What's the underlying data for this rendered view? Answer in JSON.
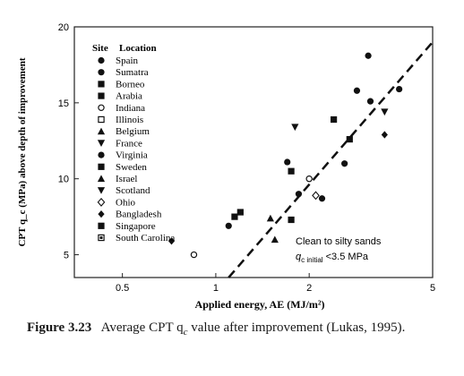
{
  "chart_data": {
    "type": "scatter",
    "x_scale": "log",
    "xlim": [
      0.35,
      5
    ],
    "ylim": [
      3.5,
      20
    ],
    "x_ticks": [
      0.5,
      1,
      2,
      5
    ],
    "x_tick_labels": [
      "0.5",
      "1",
      "2",
      "5"
    ],
    "y_ticks": [
      5,
      10,
      15,
      20
    ],
    "y_tick_labels": [
      "5",
      "10",
      "15",
      "20"
    ],
    "xlabel": "Applied energy, AE (MJ/m²)",
    "ylabel": "CPT q_c (MPa) above depth of improvement",
    "grid": false,
    "legend_title_site": "Site",
    "legend_title_location": "Location",
    "legend_position": "top-left",
    "series": [
      {
        "name": "Spain",
        "marker": "circle",
        "points": [
          [
            2.85,
            15.8
          ],
          [
            3.1,
            18.1
          ]
        ]
      },
      {
        "name": "Sumatra",
        "marker": "circle",
        "points": [
          [
            3.9,
            15.9
          ],
          [
            3.15,
            15.1
          ]
        ]
      },
      {
        "name": "Borneo",
        "marker": "square",
        "points": [
          [
            2.4,
            13.9
          ],
          [
            2.7,
            12.6
          ]
        ]
      },
      {
        "name": "Arabia",
        "marker": "square",
        "points": [
          [
            1.75,
            10.5
          ]
        ]
      },
      {
        "name": "Indiana",
        "marker": "circle-open",
        "points": [
          [
            0.85,
            5.0
          ],
          [
            2.0,
            10.0
          ]
        ]
      },
      {
        "name": "Illinois",
        "marker": "square-open",
        "points": []
      },
      {
        "name": "Belgium",
        "marker": "triangle-up",
        "points": [
          [
            1.55,
            6.0
          ]
        ]
      },
      {
        "name": "France",
        "marker": "triangle-down",
        "points": [
          [
            1.8,
            13.4
          ],
          [
            3.5,
            14.4
          ]
        ]
      },
      {
        "name": "Virginia",
        "marker": "circle",
        "points": [
          [
            1.7,
            11.1
          ],
          [
            2.6,
            11.0
          ],
          [
            1.85,
            9.0
          ]
        ]
      },
      {
        "name": "Sweden",
        "marker": "square",
        "points": [
          [
            1.2,
            7.8
          ],
          [
            1.75,
            7.3
          ]
        ]
      },
      {
        "name": "Israel",
        "marker": "triangle-up",
        "points": [
          [
            1.5,
            7.4
          ]
        ]
      },
      {
        "name": "Scotland",
        "marker": "triangle-down",
        "points": []
      },
      {
        "name": "Ohio",
        "marker": "diamond-open",
        "points": [
          [
            2.1,
            8.9
          ]
        ]
      },
      {
        "name": "Bangladesh",
        "marker": "diamond",
        "points": [
          [
            0.72,
            5.9
          ],
          [
            3.5,
            12.9
          ]
        ]
      },
      {
        "name": "Singapore",
        "marker": "square",
        "points": [
          [
            1.15,
            7.5
          ]
        ]
      },
      {
        "name": "South Carolina",
        "marker": "square-dot",
        "points": []
      }
    ],
    "trend_line": {
      "style": "dashed",
      "from": [
        1.1,
        3.5
      ],
      "to": [
        5.0,
        19.0
      ]
    },
    "annotation_line1": "Clean to silty sands",
    "annotation_q": "q",
    "annotation_sub": "c initial",
    "annotation_rest": " <3.5 MPa",
    "extra_points": [
      [
        1.1,
        6.9
      ],
      [
        2.2,
        8.7
      ]
    ]
  },
  "caption": {
    "figure_label": "Figure 3.23",
    "text": "Average CPT q",
    "subscript": "c",
    "text_after": " value after improvement (Lukas, 1995)."
  }
}
